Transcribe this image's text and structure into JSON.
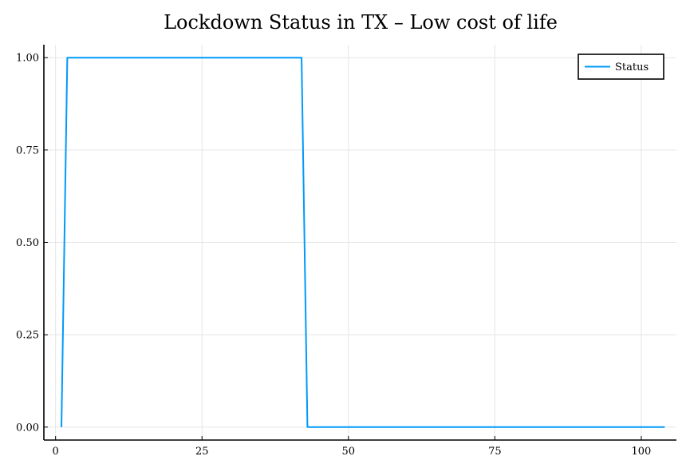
{
  "chart_data": {
    "type": "line",
    "title": "Lockdown Status in TX – Low cost of life",
    "xlabel": "",
    "ylabel": "",
    "xlim": [
      -2,
      106
    ],
    "ylim": [
      -0.035,
      1.035
    ],
    "xticks": [
      0,
      25,
      50,
      75,
      100
    ],
    "xtick_labels": [
      "0",
      "25",
      "50",
      "75",
      "100"
    ],
    "yticks": [
      0,
      0.25,
      0.5,
      0.75,
      1.0
    ],
    "ytick_labels": [
      "0.00",
      "0.25",
      "0.50",
      "0.75",
      "1.00"
    ],
    "grid": true,
    "legend_position": "top-right",
    "series": [
      {
        "name": "Status",
        "color": "#009AFA",
        "x": [
          1,
          2,
          42,
          43,
          104
        ],
        "y": [
          0,
          1,
          1,
          0,
          0
        ]
      }
    ]
  }
}
